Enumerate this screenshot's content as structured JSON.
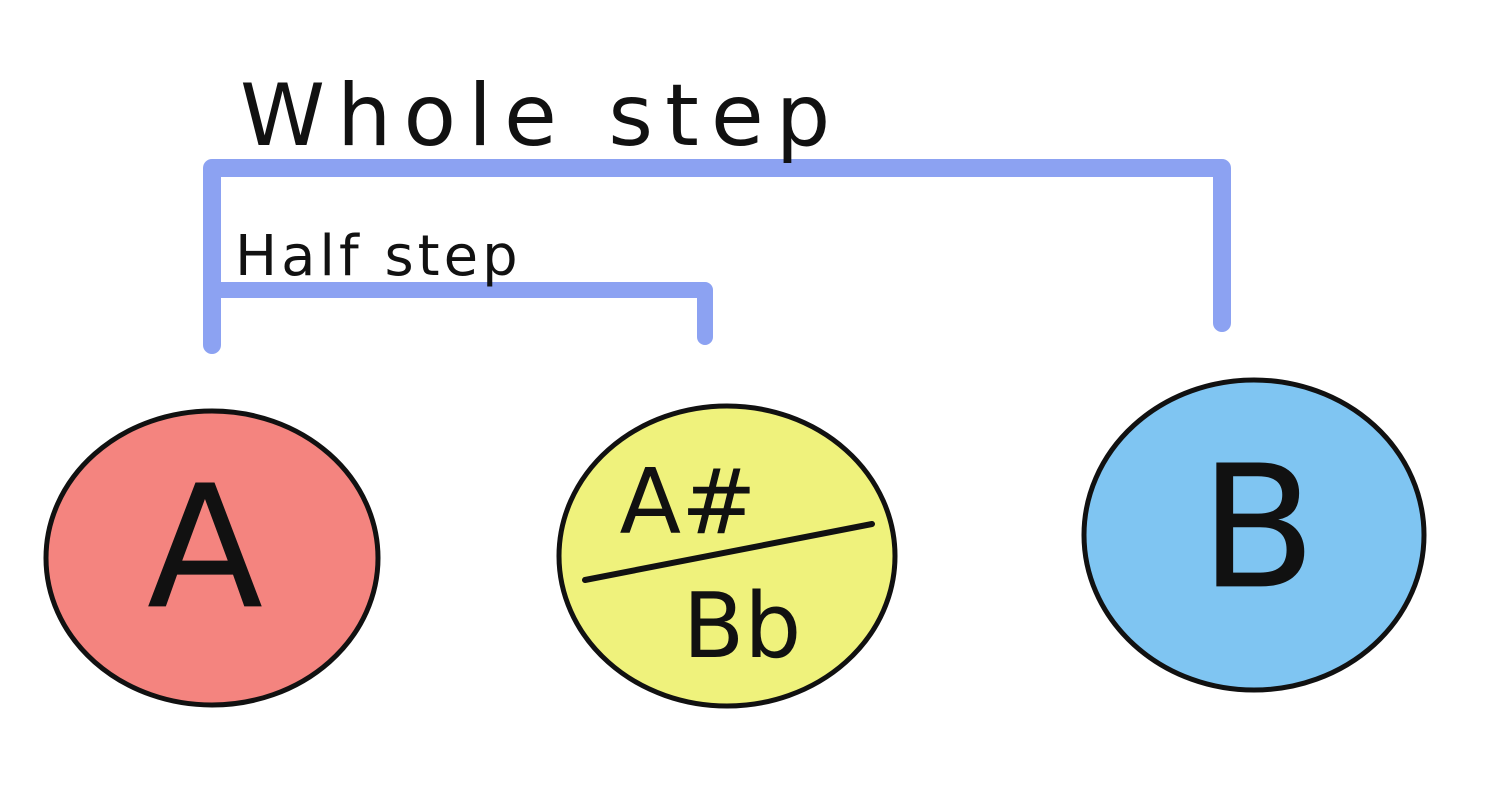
{
  "labels": {
    "whole_step": "Whole step",
    "half_step": "Half step"
  },
  "notes": [
    {
      "name": "A",
      "color": "#f4847f"
    },
    {
      "name_top": "A#",
      "name_bottom": "Bb",
      "color": "#eff27c"
    },
    {
      "name": "B",
      "color": "#7fc5f2"
    }
  ],
  "colors": {
    "bracket": "#8ca2f2",
    "ink": "#111111"
  }
}
